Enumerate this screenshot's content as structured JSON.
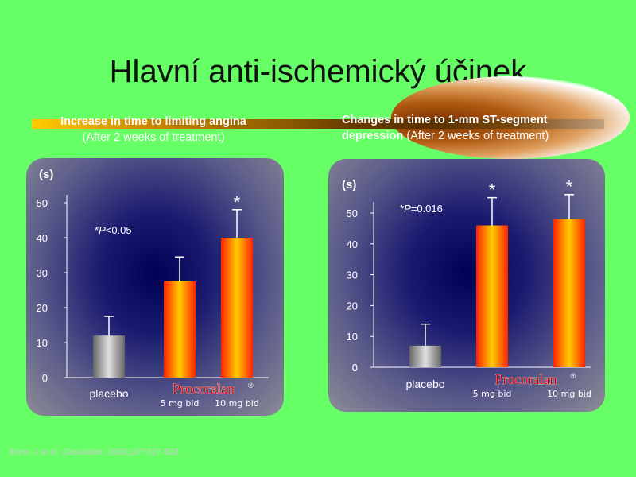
{
  "slide": {
    "title": "Hlavní anti-ischemický účinek",
    "citation_prefix": "Borer J et al. ",
    "citation_journal": "Circulation",
    "citation_suffix": ". 2003;107:817-823."
  },
  "panels": [
    {
      "heading_bold": "Increase in time to limiting angina",
      "heading_paren": "(After 2 weeks of treatment)",
      "annotation": "*P<0.05",
      "brand_label": "Procoralan",
      "brand_mark": "®"
    },
    {
      "heading_bold": "Changes in time to 1-mm ST-segment",
      "heading_bold2": "depression",
      "heading_paren": "(After 2 weeks of treatment)",
      "annotation": "*P=0.016",
      "brand_label": "Procoralan",
      "brand_mark": "®"
    }
  ],
  "chart_data": [
    {
      "type": "bar",
      "title": "Increase in time to limiting angina",
      "subtitle": "(After 2 weeks of treatment)",
      "ylabel": "(s)",
      "ylim": [
        0,
        50
      ],
      "yticks": [
        0,
        10,
        20,
        30,
        40,
        50
      ],
      "categories": [
        "placebo",
        "5 mg bid",
        "10 mg bid"
      ],
      "values": [
        12,
        27.5,
        40
      ],
      "error_upper": [
        17.5,
        34.5,
        48
      ],
      "significance": [
        "",
        "",
        "*"
      ],
      "bar_colors": [
        "#9a9a9a",
        "#ff4400",
        "#ff4400"
      ],
      "grid": false
    },
    {
      "type": "bar",
      "title": "Changes in time to 1-mm ST-segment depression",
      "subtitle": "(After 2 weeks of treatment)",
      "ylabel": "(s)",
      "ylim": [
        0,
        50
      ],
      "yticks": [
        0,
        10,
        20,
        30,
        40,
        50
      ],
      "categories": [
        "placebo",
        "5 mg bid",
        "10 mg bid"
      ],
      "values": [
        7,
        46,
        48
      ],
      "error_upper": [
        14,
        55,
        56
      ],
      "significance": [
        "",
        "*",
        "*"
      ],
      "bar_colors": [
        "#9a9a9a",
        "#ff4400",
        "#ff4400"
      ],
      "grid": false
    }
  ]
}
